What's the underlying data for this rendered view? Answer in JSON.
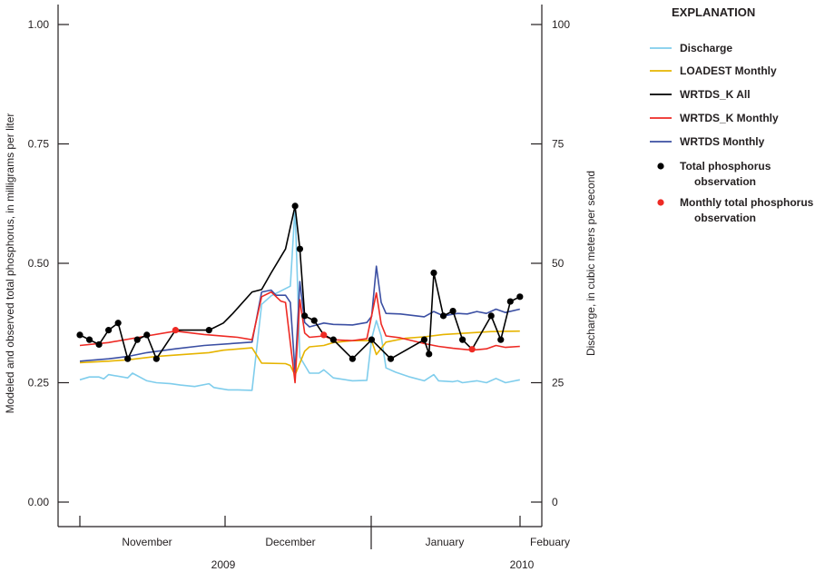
{
  "chart_data": {
    "type": "line",
    "left_axis": {
      "label": "Modeled and observed total phosphorus, in milligrams per liter",
      "ticks": [
        "0.00",
        "0.25",
        "0.50",
        "0.75",
        "1.00"
      ],
      "ylim": [
        0,
        1
      ]
    },
    "right_axis": {
      "label": "Discharge, in cubic meters per second",
      "ticks": [
        "0",
        "25",
        "50",
        "75",
        "100"
      ],
      "ylim": [
        0,
        100
      ]
    },
    "x_axis": {
      "months": [
        "November",
        "December",
        "January",
        "Febuary"
      ],
      "years": [
        "2009",
        "2010"
      ],
      "xlim": [
        "2009-10-27",
        "2010-02-05"
      ]
    },
    "grid": false,
    "legend": {
      "title": "EXPLANATION",
      "placement": "right",
      "entries": [
        "Discharge",
        "LOADEST Monthly",
        "WRTDS_K All",
        "WRTDS_K Monthly",
        "WRTDS Monthly",
        "Total phosphorus observation",
        "Monthly total phosphorus observation"
      ]
    },
    "series": [
      {
        "name": "Discharge",
        "axis": "right",
        "kind": "line",
        "color": "#7fcdec",
        "points": [
          [
            "2009-11-01",
            25.6
          ],
          [
            "2009-11-03",
            26.2
          ],
          [
            "2009-11-05",
            26.2
          ],
          [
            "2009-11-06",
            25.8
          ],
          [
            "2009-11-07",
            26.7
          ],
          [
            "2009-11-11",
            26
          ],
          [
            "2009-11-12",
            27
          ],
          [
            "2009-11-15",
            25.4
          ],
          [
            "2009-11-17",
            25
          ],
          [
            "2009-11-20",
            24.8
          ],
          [
            "2009-11-22",
            24.5
          ],
          [
            "2009-11-25",
            24.2
          ],
          [
            "2009-11-28",
            24.8
          ],
          [
            "2009-11-29",
            24
          ],
          [
            "2009-12-02",
            23.5
          ],
          [
            "2009-12-04",
            23.5
          ],
          [
            "2009-12-07",
            23.4
          ],
          [
            "2009-12-09",
            41.4
          ],
          [
            "2009-12-11",
            43.2
          ],
          [
            "2009-12-15",
            45.2
          ],
          [
            "2009-12-16",
            61.8
          ],
          [
            "2009-12-17",
            30.4
          ],
          [
            "2009-12-19",
            27
          ],
          [
            "2009-12-21",
            27
          ],
          [
            "2009-12-22",
            27.7
          ],
          [
            "2009-12-24",
            26
          ],
          [
            "2009-12-28",
            25.4
          ],
          [
            "2009-12-31",
            25.5
          ],
          [
            "2010-01-01",
            34.2
          ],
          [
            "2010-01-02",
            38
          ],
          [
            "2010-01-03",
            34.8
          ],
          [
            "2010-01-04",
            28.1
          ],
          [
            "2010-01-06",
            27.2
          ],
          [
            "2010-01-09",
            26.2
          ],
          [
            "2010-01-12",
            25.4
          ],
          [
            "2010-01-14",
            26.7
          ],
          [
            "2010-01-15",
            25.4
          ],
          [
            "2010-01-18",
            25.2
          ],
          [
            "2010-01-19",
            25.4
          ],
          [
            "2010-01-20",
            25
          ],
          [
            "2010-01-23",
            25.4
          ],
          [
            "2010-01-25",
            25
          ],
          [
            "2010-01-27",
            25.9
          ],
          [
            "2010-01-29",
            25
          ],
          [
            "2010-02-01",
            25.6
          ]
        ]
      },
      {
        "name": "LOADEST Monthly",
        "axis": "left",
        "kind": "line",
        "color": "#e6b400",
        "points": [
          [
            "2009-11-01",
            0.292
          ],
          [
            "2009-11-07",
            0.295
          ],
          [
            "2009-11-11",
            0.298
          ],
          [
            "2009-11-17",
            0.305
          ],
          [
            "2009-11-28",
            0.313
          ],
          [
            "2009-12-01",
            0.318
          ],
          [
            "2009-12-07",
            0.323
          ],
          [
            "2009-12-09",
            0.291
          ],
          [
            "2009-12-14",
            0.29
          ],
          [
            "2009-12-15",
            0.286
          ],
          [
            "2009-12-16",
            0.266
          ],
          [
            "2009-12-18",
            0.316
          ],
          [
            "2009-12-19",
            0.325
          ],
          [
            "2009-12-22",
            0.328
          ],
          [
            "2009-12-24",
            0.334
          ],
          [
            "2009-12-28",
            0.338
          ],
          [
            "2010-01-01",
            0.338
          ],
          [
            "2010-01-02",
            0.309
          ],
          [
            "2010-01-04",
            0.335
          ],
          [
            "2010-01-08",
            0.343
          ],
          [
            "2010-01-12",
            0.346
          ],
          [
            "2010-01-16",
            0.351
          ],
          [
            "2010-01-21",
            0.354
          ],
          [
            "2010-01-26",
            0.357
          ],
          [
            "2010-02-01",
            0.358
          ]
        ]
      },
      {
        "name": "WRTDS Monthly",
        "axis": "left",
        "kind": "line",
        "color": "#3b4fa3",
        "points": [
          [
            "2009-11-01",
            0.295
          ],
          [
            "2009-11-07",
            0.3
          ],
          [
            "2009-11-11",
            0.305
          ],
          [
            "2009-11-15",
            0.313
          ],
          [
            "2009-11-21",
            0.321
          ],
          [
            "2009-11-27",
            0.328
          ],
          [
            "2009-12-07",
            0.335
          ],
          [
            "2009-12-09",
            0.44
          ],
          [
            "2009-12-11",
            0.444
          ],
          [
            "2009-12-12",
            0.433
          ],
          [
            "2009-12-14",
            0.433
          ],
          [
            "2009-12-15",
            0.418
          ],
          [
            "2009-12-16",
            0.272
          ],
          [
            "2009-12-17",
            0.462
          ],
          [
            "2009-12-18",
            0.376
          ],
          [
            "2009-12-19",
            0.367
          ],
          [
            "2009-12-22",
            0.375
          ],
          [
            "2009-12-24",
            0.372
          ],
          [
            "2009-12-28",
            0.371
          ],
          [
            "2009-12-31",
            0.376
          ],
          [
            "2010-01-01",
            0.389
          ],
          [
            "2010-01-02",
            0.494
          ],
          [
            "2010-01-03",
            0.418
          ],
          [
            "2010-01-04",
            0.395
          ],
          [
            "2010-01-07",
            0.394
          ],
          [
            "2010-01-12",
            0.388
          ],
          [
            "2010-01-14",
            0.399
          ],
          [
            "2010-01-16",
            0.39
          ],
          [
            "2010-01-19",
            0.395
          ],
          [
            "2010-01-21",
            0.394
          ],
          [
            "2010-01-23",
            0.399
          ],
          [
            "2010-01-25",
            0.395
          ],
          [
            "2010-01-27",
            0.404
          ],
          [
            "2010-01-29",
            0.397
          ],
          [
            "2010-02-01",
            0.404
          ]
        ]
      },
      {
        "name": "WRTDS_K Monthly",
        "axis": "left",
        "kind": "line",
        "color": "#ee2a24",
        "points": [
          [
            "2009-11-01",
            0.328
          ],
          [
            "2009-11-07",
            0.334
          ],
          [
            "2009-11-15",
            0.348
          ],
          [
            "2009-11-21",
            0.358
          ],
          [
            "2009-11-27",
            0.351
          ],
          [
            "2009-12-04",
            0.345
          ],
          [
            "2009-12-07",
            0.34
          ],
          [
            "2009-12-09",
            0.43
          ],
          [
            "2009-12-11",
            0.44
          ],
          [
            "2009-12-13",
            0.421
          ],
          [
            "2009-12-14",
            0.418
          ],
          [
            "2009-12-16",
            0.25
          ],
          [
            "2009-12-17",
            0.424
          ],
          [
            "2009-12-18",
            0.354
          ],
          [
            "2009-12-19",
            0.345
          ],
          [
            "2009-12-22",
            0.348
          ],
          [
            "2009-12-24",
            0.34
          ],
          [
            "2009-12-28",
            0.338
          ],
          [
            "2009-12-31",
            0.342
          ],
          [
            "2010-01-02",
            0.438
          ],
          [
            "2010-01-03",
            0.373
          ],
          [
            "2010-01-04",
            0.348
          ],
          [
            "2010-01-07",
            0.344
          ],
          [
            "2010-01-12",
            0.332
          ],
          [
            "2010-01-15",
            0.326
          ],
          [
            "2010-01-18",
            0.322
          ],
          [
            "2010-01-22",
            0.318
          ],
          [
            "2010-01-25",
            0.321
          ],
          [
            "2010-01-27",
            0.328
          ],
          [
            "2010-01-29",
            0.324
          ],
          [
            "2010-02-01",
            0.326
          ]
        ]
      },
      {
        "name": "WRTDS_K All",
        "axis": "left",
        "kind": "line",
        "color": "#000000",
        "points": [
          [
            "2009-11-01",
            0.35
          ],
          [
            "2009-11-03",
            0.34
          ],
          [
            "2009-11-05",
            0.33
          ],
          [
            "2009-11-07",
            0.36
          ],
          [
            "2009-11-09",
            0.375
          ],
          [
            "2009-11-11",
            0.3
          ],
          [
            "2009-11-13",
            0.34
          ],
          [
            "2009-11-15",
            0.35
          ],
          [
            "2009-11-17",
            0.3
          ],
          [
            "2009-11-21",
            0.36
          ],
          [
            "2009-11-28",
            0.36
          ],
          [
            "2009-12-01",
            0.375
          ],
          [
            "2009-12-03",
            0.395
          ],
          [
            "2009-12-07",
            0.44
          ],
          [
            "2009-12-09",
            0.445
          ],
          [
            "2009-12-11",
            0.48
          ],
          [
            "2009-12-14",
            0.53
          ],
          [
            "2009-12-16",
            0.62
          ],
          [
            "2009-12-17",
            0.53
          ],
          [
            "2009-12-18",
            0.39
          ],
          [
            "2009-12-20",
            0.38
          ],
          [
            "2009-12-22",
            0.35
          ],
          [
            "2009-12-24",
            0.34
          ],
          [
            "2009-12-28",
            0.3
          ],
          [
            "2010-01-01",
            0.34
          ],
          [
            "2010-01-05",
            0.3
          ],
          [
            "2010-01-12",
            0.34
          ],
          [
            "2010-01-13",
            0.31
          ],
          [
            "2010-01-14",
            0.48
          ],
          [
            "2010-01-16",
            0.39
          ],
          [
            "2010-01-18",
            0.4
          ],
          [
            "2010-01-20",
            0.34
          ],
          [
            "2010-01-22",
            0.32
          ],
          [
            "2010-01-26",
            0.39
          ],
          [
            "2010-01-28",
            0.34
          ],
          [
            "2010-01-30",
            0.42
          ],
          [
            "2010-02-01",
            0.43
          ]
        ]
      },
      {
        "name": "Total phosphorus observation",
        "axis": "left",
        "kind": "points",
        "color": "#000000",
        "points": [
          [
            "2009-11-01",
            0.35
          ],
          [
            "2009-11-03",
            0.34
          ],
          [
            "2009-11-05",
            0.33
          ],
          [
            "2009-11-07",
            0.36
          ],
          [
            "2009-11-09",
            0.375
          ],
          [
            "2009-11-11",
            0.3
          ],
          [
            "2009-11-13",
            0.34
          ],
          [
            "2009-11-15",
            0.35
          ],
          [
            "2009-11-17",
            0.3
          ],
          [
            "2009-11-28",
            0.36
          ],
          [
            "2009-12-16",
            0.62
          ],
          [
            "2009-12-17",
            0.53
          ],
          [
            "2009-12-18",
            0.39
          ],
          [
            "2009-12-20",
            0.38
          ],
          [
            "2009-12-24",
            0.34
          ],
          [
            "2009-12-28",
            0.3
          ],
          [
            "2010-01-01",
            0.34
          ],
          [
            "2010-01-05",
            0.3
          ],
          [
            "2010-01-12",
            0.34
          ],
          [
            "2010-01-13",
            0.31
          ],
          [
            "2010-01-14",
            0.48
          ],
          [
            "2010-01-16",
            0.39
          ],
          [
            "2010-01-18",
            0.4
          ],
          [
            "2010-01-20",
            0.34
          ],
          [
            "2010-01-26",
            0.39
          ],
          [
            "2010-01-28",
            0.34
          ],
          [
            "2010-01-30",
            0.42
          ],
          [
            "2010-02-01",
            0.43
          ]
        ]
      },
      {
        "name": "Monthly total phosphorus observation",
        "axis": "left",
        "kind": "points",
        "color": "#ee2a24",
        "points": [
          [
            "2009-11-21",
            0.36
          ],
          [
            "2009-12-22",
            0.35
          ],
          [
            "2010-01-22",
            0.32
          ]
        ]
      }
    ]
  }
}
